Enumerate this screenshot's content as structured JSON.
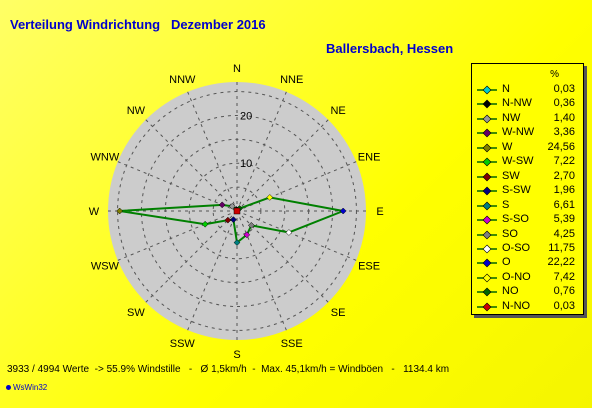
{
  "title": "Verteilung Windrichtung   Dezember 2016",
  "location": "Ballersbach, Hessen",
  "colors": {
    "background": "#ffff00",
    "title": "#0000cc",
    "disc": "#cccccc",
    "series": "#008000"
  },
  "chart_data": {
    "type": "radar",
    "directions": [
      "N",
      "NNE",
      "NE",
      "ENE",
      "E",
      "ESE",
      "SE",
      "SSE",
      "S",
      "SSW",
      "SW",
      "WSW",
      "W",
      "WNW",
      "NW",
      "NNW"
    ],
    "ring_ticks": [
      10,
      20
    ],
    "r_max": 27,
    "values": [
      0.03,
      0.03,
      0.76,
      7.42,
      22.22,
      11.75,
      4.25,
      5.39,
      6.61,
      1.96,
      2.7,
      7.22,
      24.56,
      3.36,
      1.4,
      0.36
    ],
    "legend_unit": "%",
    "legend": [
      {
        "name": "N",
        "value": "0,03",
        "color": "#00cccc",
        "marker": "diamond"
      },
      {
        "name": "N-NW",
        "value": "0,36",
        "color": "#000000",
        "marker": "diamond"
      },
      {
        "name": "NW",
        "value": "1,40",
        "color": "#999999",
        "marker": "diamond"
      },
      {
        "name": "W-NW",
        "value": "3,36",
        "color": "#660066",
        "marker": "diamond"
      },
      {
        "name": "W",
        "value": "24,56",
        "color": "#808000",
        "marker": "diamond"
      },
      {
        "name": "W-SW",
        "value": "7,22",
        "color": "#00cc00",
        "marker": "diamond"
      },
      {
        "name": "SW",
        "value": "2,70",
        "color": "#800000",
        "marker": "diamond"
      },
      {
        "name": "S-SW",
        "value": "1,96",
        "color": "#000080",
        "marker": "diamond"
      },
      {
        "name": "S",
        "value": "6,61",
        "color": "#008080",
        "marker": "diamond"
      },
      {
        "name": "S-SO",
        "value": "5,39",
        "color": "#cc00cc",
        "marker": "diamond"
      },
      {
        "name": "SO",
        "value": "4,25",
        "color": "#808080",
        "marker": "diamond"
      },
      {
        "name": "O-SO",
        "value": "11,75",
        "color": "#ffffff",
        "marker": "diamond"
      },
      {
        "name": "O",
        "value": "22,22",
        "color": "#0000cc",
        "marker": "diamond"
      },
      {
        "name": "O-NO",
        "value": "7,42",
        "color": "#ffff00",
        "marker": "diamond"
      },
      {
        "name": "NO",
        "value": "0,76",
        "color": "#006600",
        "marker": "diamond"
      },
      {
        "name": "N-NO",
        "value": "0,03",
        "color": "#cc0000",
        "marker": "diamond"
      }
    ]
  },
  "footer": "3933 / 4994 Werte  -> 55.9% Windstille   -   Ø 1,5km/h  -  Max. 45,1km/h = Windböen   -   1134.4 km",
  "logo": "WsWin32"
}
